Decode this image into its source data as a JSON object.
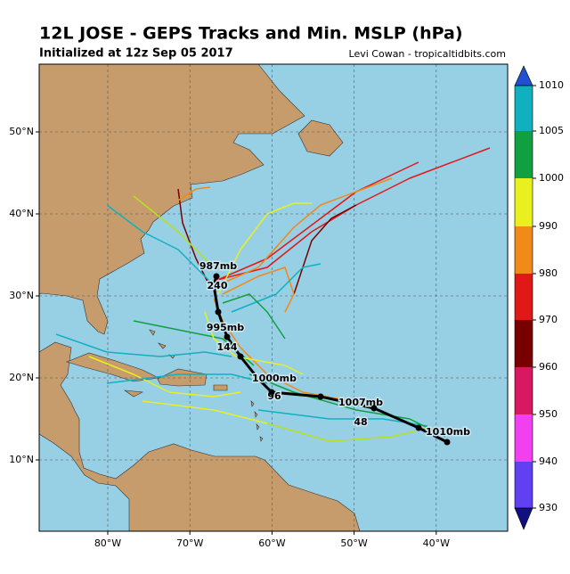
{
  "header": {
    "title": "12L JOSE - GEPS Tracks and Min. MSLP (hPa)",
    "subtitle": "Initialized at 12z Sep 05 2017",
    "credit": "Levi Cowan - tropicaltidbits.com"
  },
  "map": {
    "lon_labels": [
      "80°W",
      "70°W",
      "60°W",
      "50°W",
      "40°W"
    ],
    "lat_labels": [
      "50°N",
      "40°N",
      "30°N",
      "20°N",
      "10°N"
    ],
    "mean_track_labels": [
      "987mb",
      "240",
      "995mb",
      "144",
      "1000mb",
      "96",
      "1007mb",
      "48",
      "1010mb"
    ]
  },
  "colorbar": {
    "ticks": [
      "1010",
      "1005",
      "1000",
      "990",
      "980",
      "970",
      "960",
      "950",
      "940",
      "930"
    ],
    "colors": [
      "#10b0c0",
      "#10a040",
      "#e8f020",
      "#f08a18",
      "#e01818",
      "#780000",
      "#d81860",
      "#f040f0",
      "#6040f0"
    ]
  }
}
